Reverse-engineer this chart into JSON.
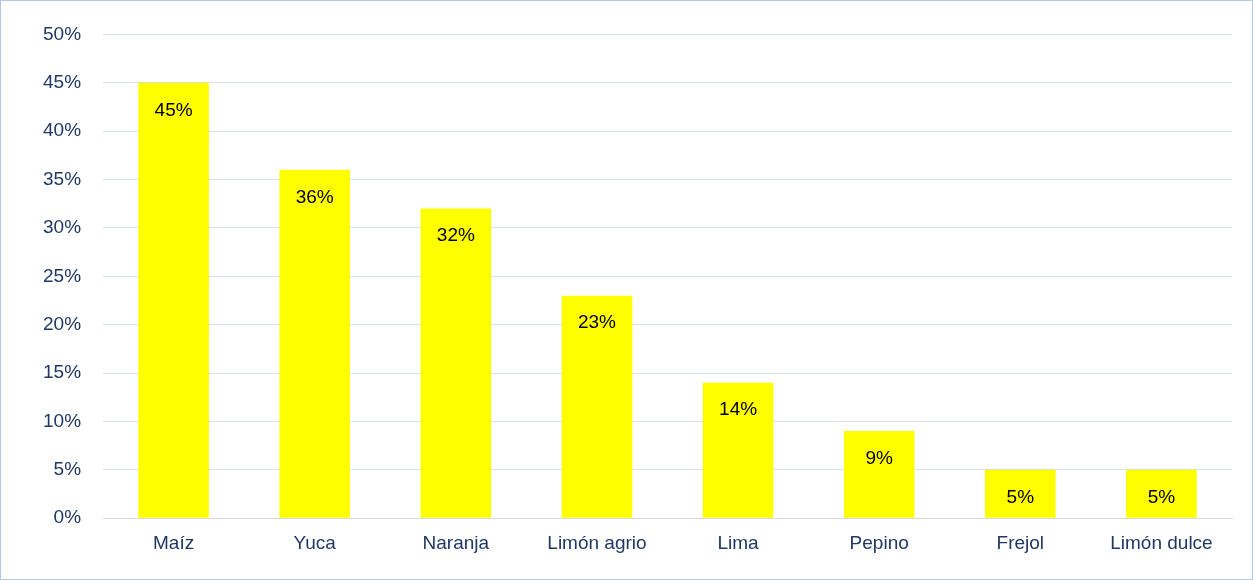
{
  "chart_data": {
    "type": "bar",
    "categories": [
      "Maíz",
      "Yuca",
      "Naranja",
      "Limón agrio",
      "Lima",
      "Pepino",
      "Frejol",
      "Limón dulce"
    ],
    "values": [
      45,
      36,
      32,
      23,
      14,
      9,
      5,
      5
    ],
    "color": "#ffff00",
    "value_labels": [
      "45%",
      "36%",
      "32%",
      "23%",
      "14%",
      "9%",
      "5%",
      "5%"
    ],
    "ylim": [
      0,
      50
    ],
    "yticks": [
      {
        "value": 0,
        "label": "0%"
      },
      {
        "value": 5,
        "label": "5%"
      },
      {
        "value": 10,
        "label": "10%"
      },
      {
        "value": 15,
        "label": "15%"
      },
      {
        "value": 20,
        "label": "20%"
      },
      {
        "value": 25,
        "label": "25%"
      },
      {
        "value": 30,
        "label": "30%"
      },
      {
        "value": 35,
        "label": "35%"
      },
      {
        "value": 40,
        "label": "40%"
      },
      {
        "value": 45,
        "label": "45%"
      },
      {
        "value": 50,
        "label": "50%"
      }
    ],
    "grid": "y",
    "legend": false
  }
}
